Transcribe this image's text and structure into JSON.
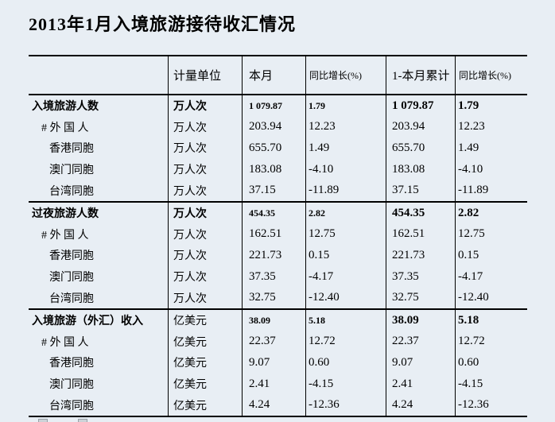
{
  "page": {
    "title": "2013年1月入境旅游接待收汇情况",
    "background_color": "#e8eef4",
    "text_color": "#000000"
  },
  "table": {
    "headers": {
      "label": "",
      "unit": "计量单位",
      "month": "本月",
      "yoy": "同比增长(%)",
      "cumulative": "1-本月累计",
      "cumulative_yoy": "同比增长(%)"
    },
    "rows": [
      {
        "label": "入境旅游人数",
        "unit": "万人次",
        "month": "1 079.87",
        "yoy": "1.79",
        "cumulative": "1 079.87",
        "cumulative_yoy": "1.79"
      },
      {
        "label": "# 外 国 人",
        "unit": "万人次",
        "month": "203.94",
        "yoy": "12.23",
        "cumulative": "203.94",
        "cumulative_yoy": "12.23"
      },
      {
        "label": "香港同胞",
        "unit": "万人次",
        "month": "655.70",
        "yoy": "1.49",
        "cumulative": "655.70",
        "cumulative_yoy": "1.49"
      },
      {
        "label": "澳门同胞",
        "unit": "万人次",
        "month": "183.08",
        "yoy": "-4.10",
        "cumulative": "183.08",
        "cumulative_yoy": "-4.10"
      },
      {
        "label": "台湾同胞",
        "unit": "万人次",
        "month": "37.15",
        "yoy": "-11.89",
        "cumulative": "37.15",
        "cumulative_yoy": "-11.89"
      },
      {
        "label": "过夜旅游人数",
        "unit": "万人次",
        "month": "454.35",
        "yoy": "2.82",
        "cumulative": "454.35",
        "cumulative_yoy": "2.82"
      },
      {
        "label": "# 外 国 人",
        "unit": "万人次",
        "month": "162.51",
        "yoy": "12.75",
        "cumulative": "162.51",
        "cumulative_yoy": "12.75"
      },
      {
        "label": "香港同胞",
        "unit": "万人次",
        "month": "221.73",
        "yoy": "0.15",
        "cumulative": "221.73",
        "cumulative_yoy": "0.15"
      },
      {
        "label": "澳门同胞",
        "unit": "万人次",
        "month": "37.35",
        "yoy": "-4.17",
        "cumulative": "37.35",
        "cumulative_yoy": "-4.17"
      },
      {
        "label": "台湾同胞",
        "unit": "万人次",
        "month": "32.75",
        "yoy": "-12.40",
        "cumulative": "32.75",
        "cumulative_yoy": "-12.40"
      },
      {
        "label": "入境旅游（外汇）收入",
        "unit": "亿美元",
        "month": "38.09",
        "yoy": "5.18",
        "cumulative": "38.09",
        "cumulative_yoy": "5.18"
      },
      {
        "label": "# 外 国 人",
        "unit": "亿美元",
        "month": "22.37",
        "yoy": "12.72",
        "cumulative": "22.37",
        "cumulative_yoy": "12.72"
      },
      {
        "label": "香港同胞",
        "unit": "亿美元",
        "month": "9.07",
        "yoy": "0.60",
        "cumulative": "9.07",
        "cumulative_yoy": "0.60"
      },
      {
        "label": "澳门同胞",
        "unit": "亿美元",
        "month": "2.41",
        "yoy": "-4.15",
        "cumulative": "2.41",
        "cumulative_yoy": "-4.15"
      },
      {
        "label": "台湾同胞",
        "unit": "亿美元",
        "month": "4.24",
        "yoy": "-12.36",
        "cumulative": "4.24",
        "cumulative_yoy": "-12.36"
      }
    ]
  }
}
